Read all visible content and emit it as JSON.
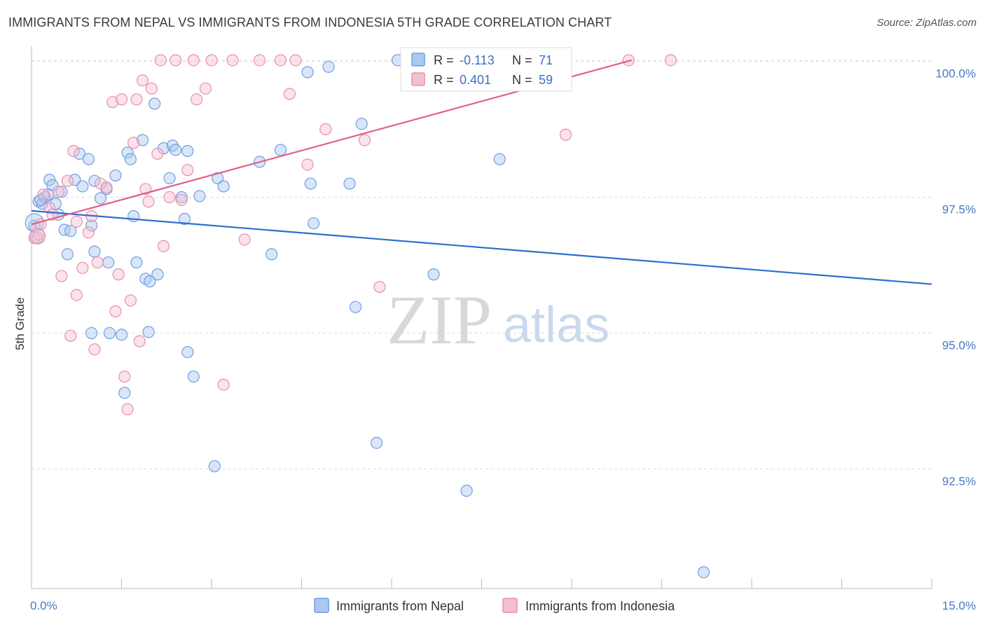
{
  "title": "IMMIGRANTS FROM NEPAL VS IMMIGRANTS FROM INDONESIA 5TH GRADE CORRELATION CHART",
  "source": "Source: ZipAtlas.com",
  "watermark": {
    "zip": "ZIP",
    "atlas": "atlas"
  },
  "colors": {
    "nepal": "#6f9fe0",
    "nepal_fill": "#aac8f0",
    "indonesia": "#e890aa",
    "indonesia_fill": "#f3c0d0",
    "nepal_line": "#2f6fcc",
    "indonesia_line": "#e0608a",
    "tick_text": "#4a78c2"
  },
  "legend": {
    "rows": [
      {
        "r_label": "R = ",
        "r_value": "-0.113",
        "n_label": "N = ",
        "n_value": "71"
      },
      {
        "r_label": "R = ",
        "r_value": "0.401",
        "n_label": "N = ",
        "n_value": "59"
      }
    ],
    "bottom": [
      "Immigrants from Nepal",
      "Immigrants from Indonesia"
    ]
  },
  "chart_data": {
    "type": "scatter",
    "title": "IMMIGRANTS FROM NEPAL VS IMMIGRANTS FROM INDONESIA 5TH GRADE CORRELATION CHART",
    "ylabel": "5th Grade",
    "xlabel": "",
    "xlim": [
      0,
      15
    ],
    "ylim": [
      90.3,
      100.2
    ],
    "y_ticks": [
      92.5,
      95.0,
      97.5,
      100.0
    ],
    "y_tick_labels": [
      "92.5%",
      "95.0%",
      "97.5%",
      "100.0%"
    ],
    "x_tick_labels": [
      "0.0%",
      "15.0%"
    ],
    "grid": true,
    "series": [
      {
        "name": "Immigrants from Nepal",
        "trend": [
          [
            0,
            97.25
          ],
          [
            15,
            95.9
          ]
        ],
        "points": [
          [
            0.05,
            96.97
          ],
          [
            0.1,
            96.75
          ],
          [
            0.12,
            97.42
          ],
          [
            0.18,
            97.38
          ],
          [
            0.22,
            97.5
          ],
          [
            0.3,
            97.82
          ],
          [
            0.35,
            97.72
          ],
          [
            0.4,
            97.38
          ],
          [
            0.45,
            97.18
          ],
          [
            0.5,
            97.6
          ],
          [
            0.55,
            96.9
          ],
          [
            0.6,
            96.45
          ],
          [
            0.65,
            96.88
          ],
          [
            0.72,
            97.82
          ],
          [
            0.8,
            98.3
          ],
          [
            0.95,
            98.2
          ],
          [
            0.85,
            97.7
          ],
          [
            1.0,
            96.98
          ],
          [
            1.05,
            96.5
          ],
          [
            1.15,
            97.48
          ],
          [
            1.25,
            97.65
          ],
          [
            1.28,
            96.3
          ],
          [
            1.4,
            97.9
          ],
          [
            1.6,
            98.32
          ],
          [
            1.65,
            98.2
          ],
          [
            1.7,
            97.15
          ],
          [
            1.75,
            96.3
          ],
          [
            1.85,
            98.55
          ],
          [
            1.9,
            96.0
          ],
          [
            1.97,
            95.95
          ],
          [
            2.05,
            99.22
          ],
          [
            2.1,
            96.08
          ],
          [
            2.2,
            98.4
          ],
          [
            2.3,
            97.85
          ],
          [
            2.35,
            98.45
          ],
          [
            2.4,
            98.37
          ],
          [
            2.5,
            97.5
          ],
          [
            2.55,
            97.1
          ],
          [
            2.6,
            98.35
          ],
          [
            2.8,
            97.52
          ],
          [
            3.1,
            97.85
          ],
          [
            3.2,
            97.7
          ],
          [
            3.8,
            98.15
          ],
          [
            4.0,
            96.45
          ],
          [
            4.15,
            98.37
          ],
          [
            4.6,
            99.8
          ],
          [
            4.65,
            97.75
          ],
          [
            4.7,
            97.02
          ],
          [
            4.95,
            99.9
          ],
          [
            5.3,
            97.75
          ],
          [
            5.4,
            95.48
          ],
          [
            5.5,
            98.85
          ],
          [
            5.75,
            92.98
          ],
          [
            6.1,
            100.02
          ],
          [
            6.25,
            99.78
          ],
          [
            6.6,
            100.02
          ],
          [
            6.7,
            96.08
          ],
          [
            7.25,
            92.1
          ],
          [
            7.8,
            98.2
          ],
          [
            11.2,
            90.6
          ],
          [
            1.0,
            95.0
          ],
          [
            1.3,
            95.0
          ],
          [
            1.5,
            94.97
          ],
          [
            1.55,
            93.9
          ],
          [
            1.95,
            95.02
          ],
          [
            2.6,
            94.65
          ],
          [
            2.7,
            94.2
          ],
          [
            3.05,
            92.55
          ],
          [
            0.15,
            97.45
          ],
          [
            0.28,
            97.55
          ],
          [
            1.05,
            97.8
          ]
        ]
      },
      {
        "name": "Immigrants from Indonesia",
        "trend": [
          [
            0,
            97.0
          ],
          [
            10,
            100.02
          ]
        ],
        "points": [
          [
            0.05,
            96.75
          ],
          [
            0.12,
            96.82
          ],
          [
            0.2,
            97.55
          ],
          [
            0.3,
            97.3
          ],
          [
            0.35,
            97.18
          ],
          [
            0.45,
            97.6
          ],
          [
            0.5,
            96.05
          ],
          [
            0.6,
            97.8
          ],
          [
            0.7,
            98.35
          ],
          [
            0.75,
            97.05
          ],
          [
            0.85,
            96.2
          ],
          [
            0.95,
            96.85
          ],
          [
            1.0,
            97.15
          ],
          [
            1.1,
            96.3
          ],
          [
            1.15,
            97.75
          ],
          [
            1.25,
            97.68
          ],
          [
            1.35,
            99.25
          ],
          [
            1.4,
            95.4
          ],
          [
            1.45,
            96.08
          ],
          [
            1.5,
            99.3
          ],
          [
            1.55,
            94.2
          ],
          [
            1.6,
            93.6
          ],
          [
            1.65,
            95.6
          ],
          [
            1.7,
            98.5
          ],
          [
            1.75,
            99.3
          ],
          [
            1.8,
            94.85
          ],
          [
            1.85,
            99.65
          ],
          [
            1.9,
            97.65
          ],
          [
            1.95,
            97.42
          ],
          [
            2.0,
            99.5
          ],
          [
            2.1,
            98.3
          ],
          [
            2.15,
            100.02
          ],
          [
            2.2,
            96.6
          ],
          [
            2.3,
            97.5
          ],
          [
            2.4,
            100.02
          ],
          [
            2.5,
            97.45
          ],
          [
            2.6,
            98.0
          ],
          [
            2.7,
            100.02
          ],
          [
            2.75,
            99.3
          ],
          [
            2.9,
            99.5
          ],
          [
            3.0,
            100.02
          ],
          [
            3.2,
            94.05
          ],
          [
            3.35,
            100.02
          ],
          [
            3.55,
            96.72
          ],
          [
            3.8,
            100.02
          ],
          [
            4.15,
            100.02
          ],
          [
            4.3,
            99.4
          ],
          [
            4.4,
            100.02
          ],
          [
            4.6,
            98.1
          ],
          [
            4.9,
            98.75
          ],
          [
            5.55,
            98.55
          ],
          [
            5.8,
            95.85
          ],
          [
            8.9,
            98.65
          ],
          [
            9.95,
            100.02
          ],
          [
            10.65,
            100.02
          ],
          [
            0.65,
            94.95
          ],
          [
            0.75,
            95.7
          ],
          [
            1.05,
            94.7
          ],
          [
            0.15,
            97.0
          ]
        ]
      }
    ]
  }
}
